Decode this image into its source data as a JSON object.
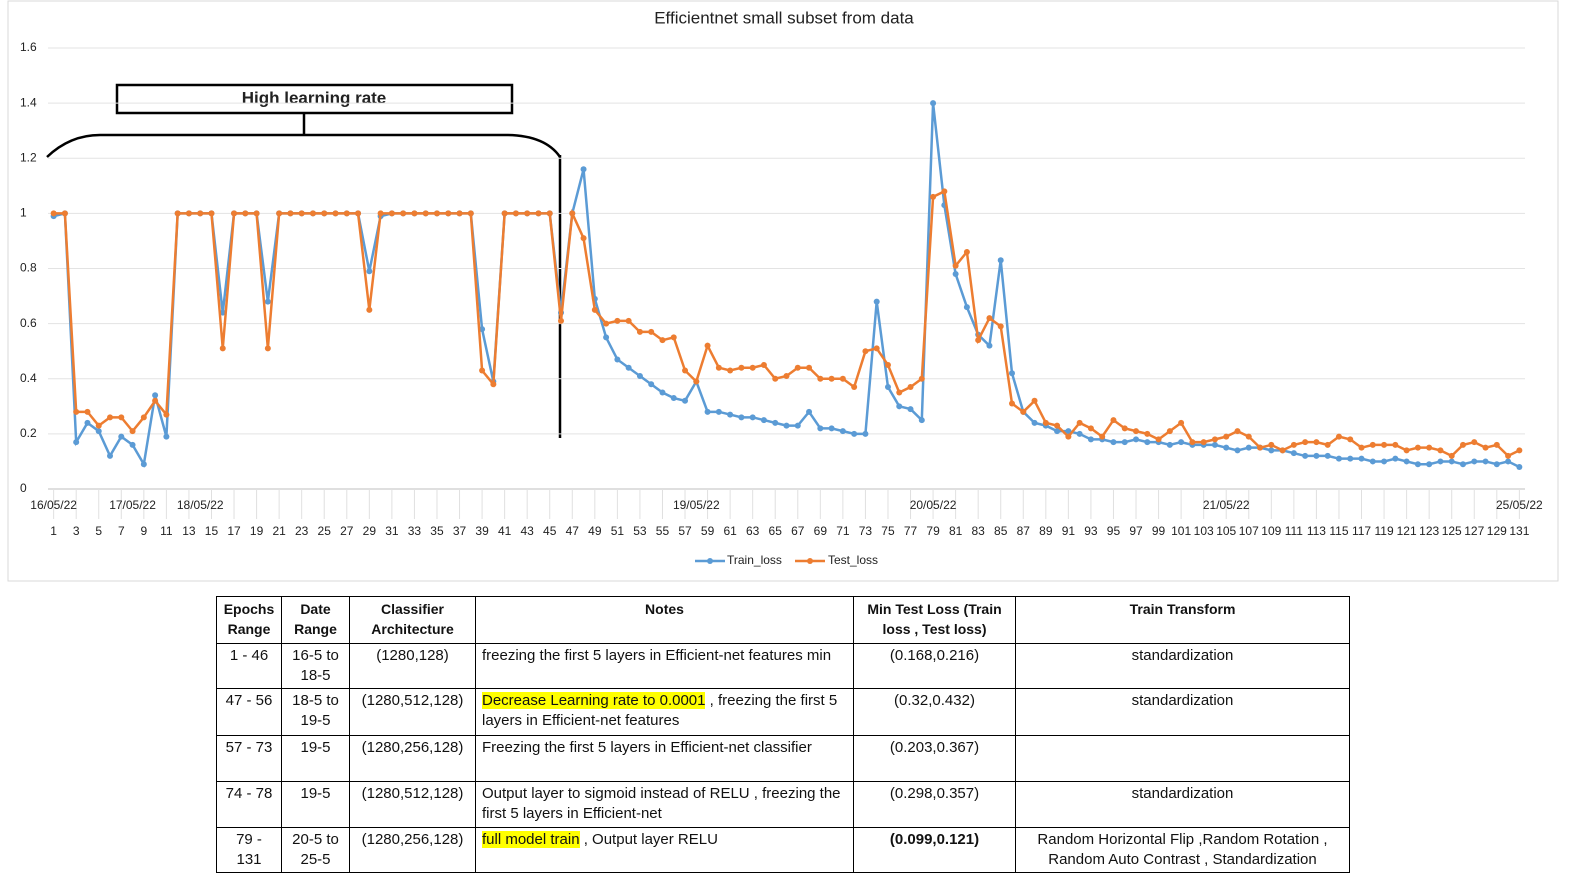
{
  "chart_data": {
    "type": "line",
    "title": "Efficientnet small subset from data",
    "x": [
      1,
      2,
      3,
      4,
      5,
      6,
      7,
      8,
      9,
      10,
      11,
      12,
      13,
      14,
      15,
      16,
      17,
      18,
      19,
      20,
      21,
      22,
      23,
      24,
      25,
      26,
      27,
      28,
      29,
      30,
      31,
      32,
      33,
      34,
      35,
      36,
      37,
      38,
      39,
      40,
      41,
      42,
      43,
      44,
      45,
      46,
      47,
      48,
      49,
      50,
      51,
      52,
      53,
      54,
      55,
      56,
      57,
      58,
      59,
      60,
      61,
      62,
      63,
      64,
      65,
      66,
      67,
      68,
      69,
      70,
      71,
      72,
      73,
      74,
      75,
      76,
      77,
      78,
      79,
      80,
      81,
      82,
      83,
      84,
      85,
      86,
      87,
      88,
      89,
      90,
      91,
      92,
      93,
      94,
      95,
      96,
      97,
      98,
      99,
      100,
      101,
      102,
      103,
      104,
      105,
      106,
      107,
      108,
      109,
      110,
      111,
      112,
      113,
      114,
      115,
      116,
      117,
      118,
      119,
      120,
      121,
      122,
      123,
      124,
      125,
      126,
      127,
      128,
      129,
      130,
      131
    ],
    "xlim": [
      0.5,
      131.5
    ],
    "xticks": [
      1,
      3,
      5,
      7,
      9,
      11,
      13,
      15,
      17,
      19,
      21,
      23,
      25,
      27,
      29,
      31,
      33,
      35,
      37,
      39,
      41,
      43,
      45,
      47,
      49,
      51,
      53,
      55,
      57,
      59,
      61,
      63,
      65,
      67,
      69,
      71,
      73,
      75,
      77,
      79,
      81,
      83,
      85,
      87,
      89,
      91,
      93,
      95,
      97,
      99,
      101,
      103,
      105,
      107,
      109,
      111,
      113,
      115,
      117,
      119,
      121,
      123,
      125,
      127,
      129,
      131
    ],
    "date_ticks": [
      {
        "value": 1,
        "label": "16/05/22"
      },
      {
        "value": 8,
        "label": "17/05/22"
      },
      {
        "value": 14,
        "label": "18/05/22"
      },
      {
        "value": 58,
        "label": "19/05/22"
      },
      {
        "value": 79,
        "label": "20/05/22"
      },
      {
        "value": 105,
        "label": "21/05/22"
      },
      {
        "value": 131,
        "label": "25/05/22"
      }
    ],
    "ylim": [
      0,
      1.6
    ],
    "yticks": [
      0,
      0.2,
      0.4,
      0.6,
      0.8,
      1,
      1.2,
      1.4,
      1.6
    ],
    "grid": true,
    "annotation": "High learning rate",
    "series": [
      {
        "name": "Train_loss",
        "color": "#5b9bd5",
        "values": [
          0.99,
          1,
          0.17,
          0.24,
          0.21,
          0.12,
          0.19,
          0.16,
          0.09,
          0.34,
          0.19,
          1,
          1,
          1,
          1,
          0.64,
          1,
          1,
          1,
          0.68,
          1,
          1,
          1,
          1,
          1,
          1,
          1,
          1,
          0.79,
          0.99,
          1,
          1,
          1,
          1,
          1,
          1,
          1,
          1,
          0.58,
          0.39,
          1,
          1,
          1,
          1,
          1,
          0.64,
          1,
          1.16,
          0.69,
          0.55,
          0.47,
          0.44,
          0.41,
          0.38,
          0.35,
          0.33,
          0.32,
          0.39,
          0.28,
          0.28,
          0.27,
          0.26,
          0.26,
          0.25,
          0.24,
          0.23,
          0.23,
          0.28,
          0.22,
          0.22,
          0.21,
          0.2,
          0.2,
          0.68,
          0.37,
          0.3,
          0.29,
          0.25,
          1.4,
          1.03,
          0.78,
          0.66,
          0.56,
          0.52,
          0.83,
          0.42,
          0.28,
          0.24,
          0.23,
          0.21,
          0.21,
          0.2,
          0.18,
          0.18,
          0.17,
          0.17,
          0.18,
          0.17,
          0.17,
          0.16,
          0.17,
          0.16,
          0.16,
          0.16,
          0.15,
          0.14,
          0.15,
          0.15,
          0.14,
          0.14,
          0.13,
          0.12,
          0.12,
          0.12,
          0.11,
          0.11,
          0.11,
          0.1,
          0.1,
          0.11,
          0.1,
          0.09,
          0.09,
          0.1,
          0.1,
          0.09,
          0.1,
          0.1,
          0.09,
          0.1,
          0.08
        ]
      },
      {
        "name": "Test_loss",
        "color": "#ed7d31",
        "values": [
          1,
          1,
          0.28,
          0.28,
          0.23,
          0.26,
          0.26,
          0.21,
          0.26,
          0.32,
          0.27,
          1,
          1,
          1,
          1,
          0.51,
          1,
          1,
          1,
          0.51,
          1,
          1,
          1,
          1,
          1,
          1,
          1,
          1,
          0.65,
          1,
          1,
          1,
          1,
          1,
          1,
          1,
          1,
          1,
          0.43,
          0.38,
          1,
          1,
          1,
          1,
          1,
          0.61,
          1,
          0.91,
          0.65,
          0.6,
          0.61,
          0.61,
          0.57,
          0.57,
          0.54,
          0.55,
          0.43,
          0.39,
          0.52,
          0.44,
          0.43,
          0.44,
          0.44,
          0.45,
          0.4,
          0.41,
          0.44,
          0.44,
          0.4,
          0.4,
          0.4,
          0.37,
          0.5,
          0.51,
          0.45,
          0.35,
          0.37,
          0.4,
          1.06,
          1.08,
          0.81,
          0.86,
          0.54,
          0.62,
          0.59,
          0.31,
          0.28,
          0.32,
          0.24,
          0.23,
          0.19,
          0.24,
          0.22,
          0.19,
          0.25,
          0.22,
          0.21,
          0.2,
          0.18,
          0.21,
          0.24,
          0.17,
          0.17,
          0.18,
          0.19,
          0.21,
          0.19,
          0.15,
          0.16,
          0.14,
          0.16,
          0.17,
          0.17,
          0.16,
          0.19,
          0.18,
          0.15,
          0.16,
          0.16,
          0.16,
          0.14,
          0.15,
          0.15,
          0.14,
          0.12,
          0.16,
          0.17,
          0.15,
          0.16,
          0.12,
          0.14
        ]
      }
    ]
  },
  "table": {
    "header": [
      "Epochs Range",
      "Date Range",
      "Classifier Architecture",
      "Notes",
      "Min Test Loss (Train loss , Test loss)",
      "Train Transform"
    ],
    "rows": [
      [
        "1 - 46",
        "16-5 to 18-5",
        "(1280,128)",
        "freezing the first 5 layers in Efficient-net features min",
        "(0.168,0.216)",
        "standardization"
      ],
      [
        "47 - 56",
        "18-5 to 19-5",
        "(1280,512,128)",
        {
          "highlighted": "Decrease Learning rate to 0.0001",
          "rest": " , freezing the first 5 layers in Efficient-net features"
        },
        "(0.32,0.432)",
        "standardization"
      ],
      [
        "57 - 73",
        "19-5",
        "(1280,256,128)",
        "Freezing the first 5 layers in Efficient-net classifier",
        "(0.203,0.367)",
        ""
      ],
      [
        "74 - 78",
        "19-5",
        "(1280,512,128)",
        "Output layer to sigmoid instead of RELU , freezing the first 5 layers in Efficient-net",
        "(0.298,0.357)",
        "standardization"
      ],
      [
        "79 - 131",
        "20-5 to 25-5",
        "(1280,256,128)",
        {
          "highlighted": "full model train",
          "rest": " , Output layer RELU"
        },
        {
          "text": "(0.099,0.121)",
          "bold": true
        },
        "Random Horizontal Flip ,Random Rotation , Random Auto Contrast , Standardization"
      ]
    ]
  }
}
